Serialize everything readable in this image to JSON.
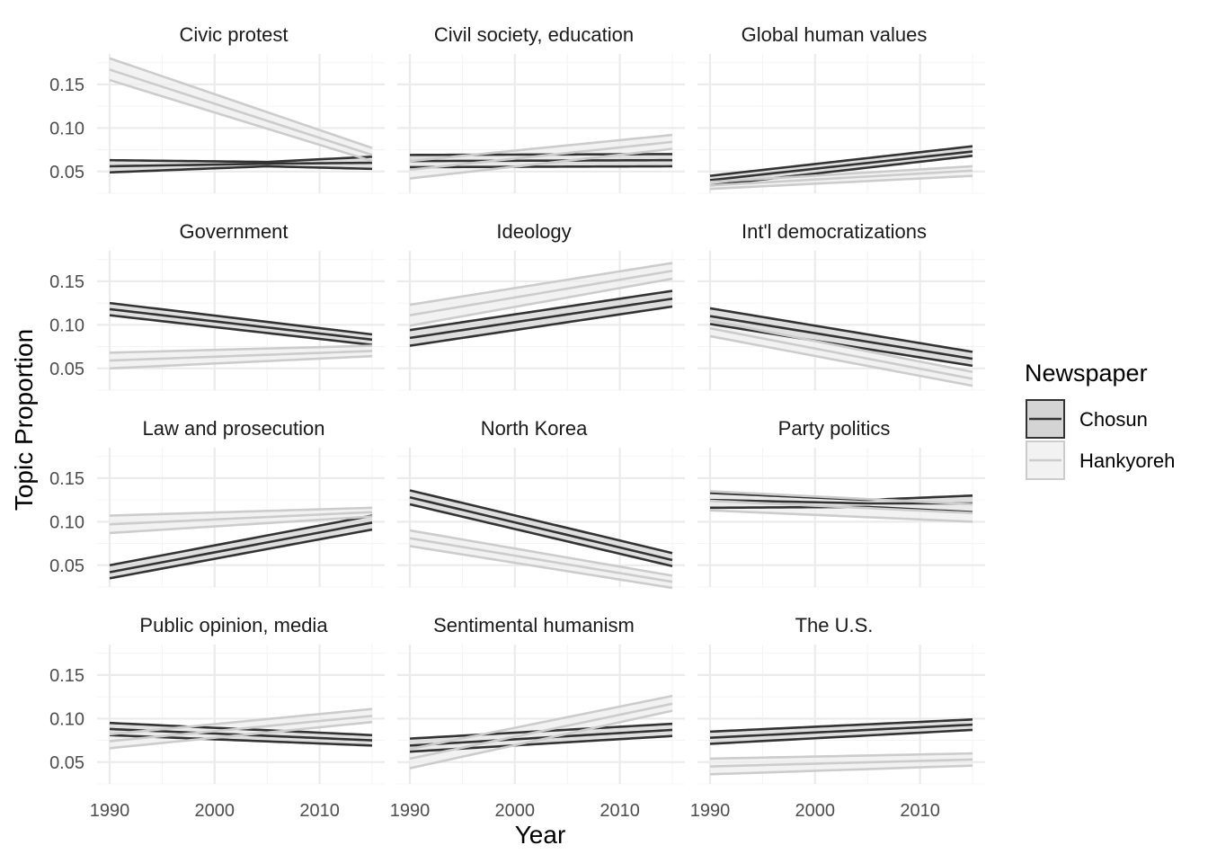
{
  "chart_data": {
    "type": "line",
    "layout": "facet_wrap",
    "ncol": 3,
    "xlabel": "Year",
    "ylabel": "Topic Proportion",
    "xlim": [
      1990,
      2015
    ],
    "ylim": [
      0.025,
      0.185
    ],
    "x_ticks": [
      "1990",
      "2000",
      "2010"
    ],
    "x_tick_values": [
      1990,
      2000,
      2010
    ],
    "y_ticks": [
      "0.05",
      "0.10",
      "0.15"
    ],
    "y_tick_values": [
      0.05,
      0.1,
      0.15
    ],
    "grid": true,
    "legend": {
      "title": "Newspaper",
      "position": "right",
      "entries": [
        "Chosun",
        "Hankyoreh"
      ]
    },
    "series_style": {
      "Chosun": {
        "line": "#333333",
        "ribbon": "#d4d4d4"
      },
      "Hankyoreh": {
        "line": "#cccccc",
        "ribbon": "#ededed"
      }
    },
    "panels": [
      {
        "title": "Civic protest",
        "series": [
          {
            "name": "Chosun",
            "x": [
              1990,
              2005,
              2015
            ],
            "mean": [
              0.056,
              0.059,
              0.06
            ],
            "lower": [
              0.049,
              0.056,
              0.053
            ],
            "upper": [
              0.063,
              0.061,
              0.067
            ]
          },
          {
            "name": "Hankyoreh",
            "x": [
              1990,
              2015
            ],
            "mean": [
              0.167,
              0.069
            ],
            "lower": [
              0.155,
              0.062
            ],
            "upper": [
              0.18,
              0.077
            ]
          }
        ]
      },
      {
        "title": "Civil society, education",
        "series": [
          {
            "name": "Chosun",
            "x": [
              1990,
              2015
            ],
            "mean": [
              0.062,
              0.063
            ],
            "lower": [
              0.055,
              0.056
            ],
            "upper": [
              0.069,
              0.07
            ]
          },
          {
            "name": "Hankyoreh",
            "x": [
              1990,
              2015
            ],
            "mean": [
              0.052,
              0.084
            ],
            "lower": [
              0.042,
              0.076
            ],
            "upper": [
              0.062,
              0.092
            ]
          }
        ]
      },
      {
        "title": "Global human values",
        "series": [
          {
            "name": "Chosun",
            "x": [
              1990,
              2015
            ],
            "mean": [
              0.04,
              0.073
            ],
            "lower": [
              0.034,
              0.068
            ],
            "upper": [
              0.045,
              0.079
            ]
          },
          {
            "name": "Hankyoreh",
            "x": [
              1990,
              2015
            ],
            "mean": [
              0.034,
              0.051
            ],
            "lower": [
              0.03,
              0.045
            ],
            "upper": [
              0.038,
              0.056
            ]
          }
        ]
      },
      {
        "title": "Government",
        "series": [
          {
            "name": "Chosun",
            "x": [
              1990,
              2015
            ],
            "mean": [
              0.118,
              0.083
            ],
            "lower": [
              0.111,
              0.077
            ],
            "upper": [
              0.125,
              0.089
            ]
          },
          {
            "name": "Hankyoreh",
            "x": [
              1990,
              2015
            ],
            "mean": [
              0.059,
              0.07
            ],
            "lower": [
              0.05,
              0.064
            ],
            "upper": [
              0.068,
              0.076
            ]
          }
        ]
      },
      {
        "title": "Ideology",
        "series": [
          {
            "name": "Chosun",
            "x": [
              1990,
              2015
            ],
            "mean": [
              0.085,
              0.13
            ],
            "lower": [
              0.076,
              0.121
            ],
            "upper": [
              0.094,
              0.139
            ]
          },
          {
            "name": "Hankyoreh",
            "x": [
              1990,
              2015
            ],
            "mean": [
              0.111,
              0.162
            ],
            "lower": [
              0.099,
              0.153
            ],
            "upper": [
              0.123,
              0.171
            ]
          }
        ]
      },
      {
        "title": "Int'l democratizations",
        "series": [
          {
            "name": "Chosun",
            "x": [
              1990,
              2015
            ],
            "mean": [
              0.11,
              0.061
            ],
            "lower": [
              0.101,
              0.053
            ],
            "upper": [
              0.119,
              0.069
            ]
          },
          {
            "name": "Hankyoreh",
            "x": [
              1990,
              2015
            ],
            "mean": [
              0.096,
              0.038
            ],
            "lower": [
              0.087,
              0.03
            ],
            "upper": [
              0.105,
              0.046
            ]
          }
        ]
      },
      {
        "title": "Law and prosecution",
        "series": [
          {
            "name": "Chosun",
            "x": [
              1990,
              2015
            ],
            "mean": [
              0.042,
              0.099
            ],
            "lower": [
              0.035,
              0.091
            ],
            "upper": [
              0.05,
              0.107
            ]
          },
          {
            "name": "Hankyoreh",
            "x": [
              1990,
              2015
            ],
            "mean": [
              0.097,
              0.111
            ],
            "lower": [
              0.087,
              0.106
            ],
            "upper": [
              0.107,
              0.116
            ]
          }
        ]
      },
      {
        "title": "North Korea",
        "series": [
          {
            "name": "Chosun",
            "x": [
              1990,
              2015
            ],
            "mean": [
              0.128,
              0.056
            ],
            "lower": [
              0.12,
              0.049
            ],
            "upper": [
              0.136,
              0.064
            ]
          },
          {
            "name": "Hankyoreh",
            "x": [
              1990,
              2015
            ],
            "mean": [
              0.081,
              0.031
            ],
            "lower": [
              0.072,
              0.024
            ],
            "upper": [
              0.09,
              0.038
            ]
          }
        ]
      },
      {
        "title": "Party politics",
        "series": [
          {
            "name": "Chosun",
            "x": [
              1990,
              2005,
              2015
            ],
            "mean": [
              0.125,
              0.121,
              0.121
            ],
            "lower": [
              0.116,
              0.117,
              0.111
            ],
            "upper": [
              0.133,
              0.125,
              0.13
            ]
          },
          {
            "name": "Hankyoreh",
            "x": [
              1990,
              2015
            ],
            "mean": [
              0.124,
              0.11
            ],
            "lower": [
              0.113,
              0.1
            ],
            "upper": [
              0.135,
              0.12
            ]
          }
        ]
      },
      {
        "title": "Public opinion, media",
        "series": [
          {
            "name": "Chosun",
            "x": [
              1990,
              2015
            ],
            "mean": [
              0.088,
              0.075
            ],
            "lower": [
              0.081,
              0.069
            ],
            "upper": [
              0.095,
              0.081
            ]
          },
          {
            "name": "Hankyoreh",
            "x": [
              1990,
              2015
            ],
            "mean": [
              0.074,
              0.103
            ],
            "lower": [
              0.066,
              0.096
            ],
            "upper": [
              0.082,
              0.111
            ]
          }
        ]
      },
      {
        "title": "Sentimental humanism",
        "series": [
          {
            "name": "Chosun",
            "x": [
              1990,
              2015
            ],
            "mean": [
              0.069,
              0.087
            ],
            "lower": [
              0.062,
              0.08
            ],
            "upper": [
              0.077,
              0.094
            ]
          },
          {
            "name": "Hankyoreh",
            "x": [
              1990,
              2015
            ],
            "mean": [
              0.054,
              0.117
            ],
            "lower": [
              0.043,
              0.109
            ],
            "upper": [
              0.065,
              0.126
            ]
          }
        ]
      },
      {
        "title": "The U.S.",
        "series": [
          {
            "name": "Chosun",
            "x": [
              1990,
              2015
            ],
            "mean": [
              0.078,
              0.093
            ],
            "lower": [
              0.071,
              0.087
            ],
            "upper": [
              0.085,
              0.099
            ]
          },
          {
            "name": "Hankyoreh",
            "x": [
              1990,
              2015
            ],
            "mean": [
              0.045,
              0.053
            ],
            "lower": [
              0.036,
              0.046
            ],
            "upper": [
              0.054,
              0.06
            ]
          }
        ]
      }
    ]
  }
}
